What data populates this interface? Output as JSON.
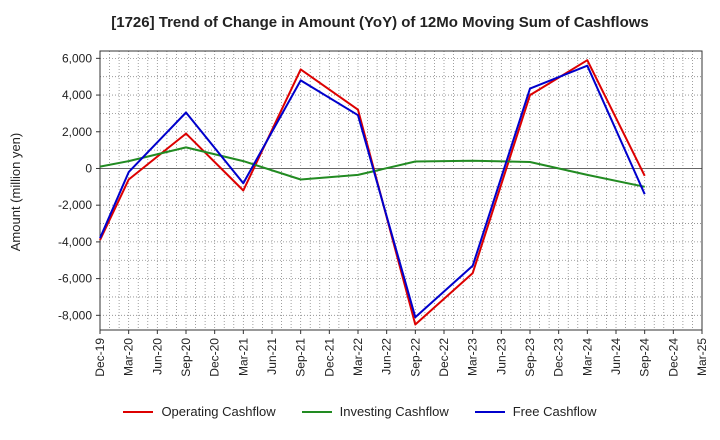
{
  "chart_data": {
    "type": "line",
    "title": "[1726]  Trend of Change in Amount (YoY) of 12Mo Moving Sum of Cashflows",
    "xlabel": "",
    "ylabel": "Amount (million yen)",
    "ylim": [
      -8800,
      6400
    ],
    "yticks": [
      6000,
      4000,
      2000,
      0,
      -2000,
      -4000,
      -6000,
      -8000
    ],
    "ytick_labels": [
      "6,000",
      "4,000",
      "2,000",
      "0",
      "-2,000",
      "-4,000",
      "-6,000",
      "-8,000"
    ],
    "categories": [
      "Dec-19",
      "Mar-20",
      "Jun-20",
      "Sep-20",
      "Dec-20",
      "Mar-21",
      "Jun-21",
      "Sep-21",
      "Dec-21",
      "Mar-22",
      "Jun-22",
      "Sep-22",
      "Dec-22",
      "Mar-23",
      "Jun-23",
      "Sep-23",
      "Dec-23",
      "Mar-24",
      "Jun-24",
      "Sep-24",
      "Dec-24",
      "Mar-25"
    ],
    "series": [
      {
        "name": "Operating Cashflow",
        "color": "#dd0000",
        "values": [
          -3900,
          -600,
          null,
          1900,
          null,
          -1200,
          null,
          5400,
          null,
          3200,
          null,
          -8500,
          null,
          -5700,
          null,
          4000,
          null,
          5900,
          null,
          -400,
          null,
          null
        ]
      },
      {
        "name": "Investing Cashflow",
        "color": "#228b22",
        "values": [
          100,
          400,
          null,
          1150,
          null,
          400,
          null,
          -600,
          null,
          -350,
          null,
          380,
          null,
          420,
          null,
          350,
          null,
          -350,
          null,
          -1000,
          null,
          null
        ]
      },
      {
        "name": "Free Cashflow",
        "color": "#0000cc",
        "values": [
          -3800,
          -200,
          null,
          3050,
          null,
          -800,
          null,
          4800,
          null,
          2900,
          null,
          -8100,
          null,
          -5300,
          null,
          4350,
          null,
          5600,
          null,
          -1400,
          null,
          null
        ]
      }
    ],
    "legend_position": "bottom",
    "grid": true
  }
}
